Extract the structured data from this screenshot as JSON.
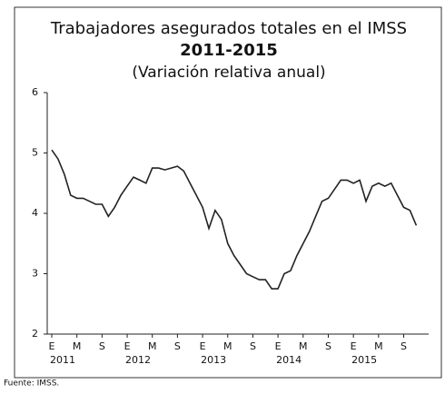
{
  "chart_data": {
    "type": "line",
    "title": "Trabajadores asegurados totales en el IMSS",
    "title2": "2011-2015",
    "subtitle": "(Variación relativa anual)",
    "source": "Fuente: IMSS.",
    "categories": [
      "E",
      null,
      null,
      null,
      "M",
      null,
      null,
      null,
      "S",
      null,
      null,
      null,
      "E",
      null,
      null,
      null,
      "M",
      null,
      null,
      null,
      "S",
      null,
      null,
      null,
      "E",
      null,
      null,
      null,
      "M",
      null,
      null,
      null,
      "S",
      null,
      null,
      null,
      "E",
      null,
      null,
      null,
      "M",
      null,
      null,
      null,
      "S",
      null,
      null,
      null,
      "E",
      null,
      null,
      null,
      "M",
      null,
      null,
      null,
      "S",
      null,
      null
    ],
    "years": [
      "2011",
      "2012",
      "2013",
      "2014",
      "2015"
    ],
    "series": [
      {
        "color": "#222222",
        "values": [
          5.05,
          4.9,
          4.65,
          4.3,
          4.25,
          4.25,
          4.2,
          4.15,
          4.15,
          3.95,
          4.1,
          4.3,
          4.45,
          4.6,
          4.55,
          4.5,
          4.75,
          4.75,
          4.72,
          4.75,
          4.78,
          4.7,
          4.5,
          4.3,
          4.1,
          3.75,
          4.05,
          3.9,
          3.5,
          3.3,
          3.15,
          3.0,
          2.95,
          2.9,
          2.9,
          2.75,
          2.75,
          3.0,
          3.05,
          3.3,
          3.5,
          3.7,
          3.95,
          4.2,
          4.25,
          4.4,
          4.55,
          4.55,
          4.5,
          4.55,
          4.2,
          4.45,
          4.5,
          4.45,
          4.5,
          4.3,
          4.1,
          4.05,
          3.8
        ]
      }
    ],
    "ylim": [
      2,
      6
    ],
    "yticks": [
      2,
      3,
      4,
      5,
      6
    ],
    "grid": false
  }
}
